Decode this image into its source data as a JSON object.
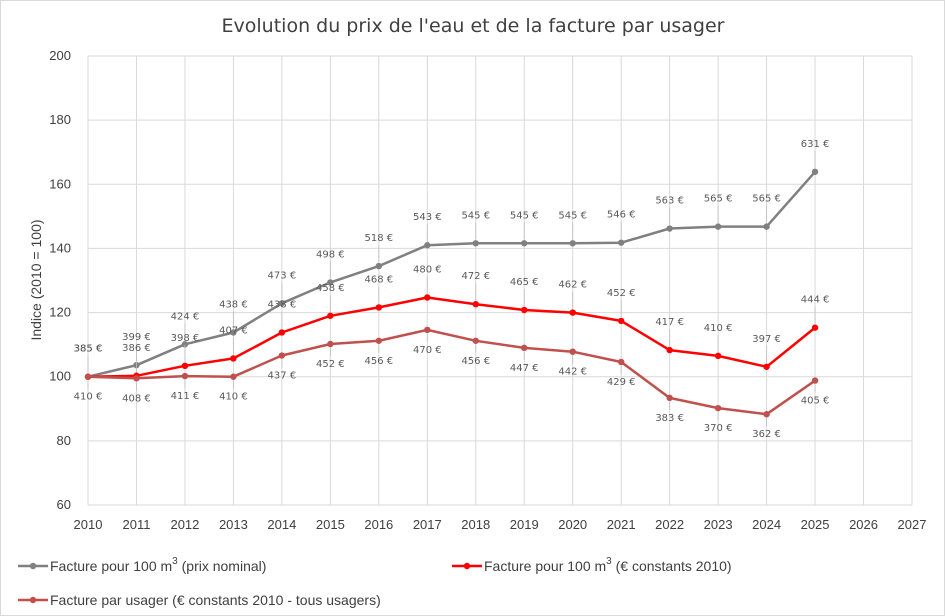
{
  "chart_data": {
    "type": "line",
    "title": "Evolution du prix de l'eau et de la facture par usager",
    "xlabel": "",
    "ylabel": "Indice (2010 = 100)",
    "xlim": [
      2010,
      2027
    ],
    "ylim": [
      60,
      200
    ],
    "y_ticks": [
      60,
      80,
      100,
      120,
      140,
      160,
      180,
      200
    ],
    "x_ticks": [
      2010,
      2011,
      2012,
      2013,
      2014,
      2015,
      2016,
      2017,
      2018,
      2019,
      2020,
      2021,
      2022,
      2023,
      2024,
      2025,
      2026,
      2027
    ],
    "grid": true,
    "legend_position": "bottom",
    "x": [
      2010,
      2011,
      2012,
      2013,
      2014,
      2015,
      2016,
      2017,
      2018,
      2019,
      2020,
      2021,
      2022,
      2023,
      2024,
      2025
    ],
    "series": [
      {
        "key": "nominal",
        "name_main": "Facture pour 100 m",
        "name_sup": "3",
        "name_tail": " (prix nominal)",
        "color": "#808080",
        "values": [
          100,
          103.6,
          110.1,
          113.8,
          122.9,
          129.4,
          134.5,
          141.0,
          141.6,
          141.6,
          141.6,
          141.8,
          146.2,
          146.8,
          146.8,
          163.9
        ],
        "labels": [
          "385 €",
          "399 €",
          "424 €",
          "438 €",
          "473 €",
          "498 €",
          "518 €",
          "543 €",
          "545 €",
          "545 €",
          "545 €",
          "546 €",
          "563 €",
          "565 €",
          "565 €",
          "631 €"
        ],
        "label_pos": [
          "above",
          "above",
          "above",
          "above",
          "above",
          "above",
          "above",
          "above",
          "above",
          "above",
          "above",
          "above",
          "above",
          "above",
          "above",
          "above"
        ]
      },
      {
        "key": "constant",
        "name_main": "Facture pour 100 m",
        "name_sup": "3",
        "name_tail": " (€ constants 2010)",
        "color": "#ff0000",
        "values": [
          100,
          100.3,
          103.4,
          105.7,
          113.8,
          119.0,
          121.6,
          124.7,
          122.6,
          120.8,
          120.0,
          117.4,
          108.3,
          106.5,
          103.1,
          115.3
        ],
        "labels": [
          "385 €",
          "386 €",
          "398 €",
          "407 €",
          "438 €",
          "458 €",
          "468 €",
          "480 €",
          "472 €",
          "465 €",
          "462 €",
          "452 €",
          "417 €",
          "410 €",
          "397 €",
          "444 €"
        ],
        "label_pos": [
          "above",
          "above",
          "above",
          "above",
          "above",
          "above",
          "above",
          "above",
          "above",
          "above",
          "above",
          "above",
          "above",
          "above",
          "above",
          "above"
        ]
      },
      {
        "key": "usager",
        "name_main": "Facture par usager (€ constants 2010 - tous usagers)",
        "name_sup": "",
        "name_tail": "",
        "color": "#c0504d",
        "values": [
          100,
          99.5,
          100.2,
          100.0,
          106.6,
          110.2,
          111.2,
          114.6,
          111.2,
          109.0,
          107.8,
          104.6,
          93.4,
          90.2,
          88.3,
          98.8
        ],
        "labels": [
          "410 €",
          "408 €",
          "411 €",
          "410 €",
          "437 €",
          "452 €",
          "456 €",
          "470 €",
          "456 €",
          "447 €",
          "442 €",
          "429 €",
          "383 €",
          "370 €",
          "362 €",
          "405 €"
        ],
        "label_pos": [
          "below",
          "below",
          "below",
          "below",
          "below",
          "below",
          "below",
          "below",
          "below",
          "below",
          "below",
          "below",
          "below",
          "below",
          "below",
          "below"
        ]
      }
    ]
  }
}
